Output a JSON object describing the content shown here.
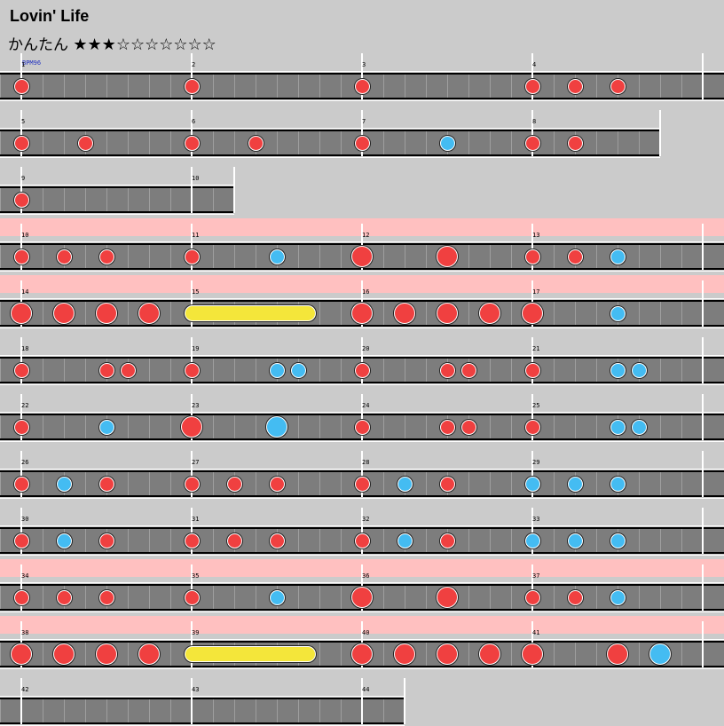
{
  "song": {
    "title": "Lovin' Life",
    "difficulty": "かんたん",
    "stars": "★★★☆☆☆☆☆☆☆",
    "bpm": "BPM96"
  },
  "rows": [
    {
      "m0": 1,
      "beats": 32,
      "gogo": false,
      "notes": [
        [
          0,
          "d",
          0
        ],
        [
          8,
          "d",
          0
        ],
        [
          16,
          "d",
          0
        ],
        [
          24,
          "d",
          0
        ],
        [
          26,
          "d",
          0
        ],
        [
          28,
          "d",
          0
        ]
      ]
    },
    {
      "m0": 5,
      "beats": 30,
      "gogo": false,
      "notes": [
        [
          0,
          "d",
          0
        ],
        [
          3,
          "d",
          0
        ],
        [
          8,
          "d",
          0
        ],
        [
          11,
          "d",
          0
        ],
        [
          16,
          "d",
          0
        ],
        [
          20,
          "k",
          0
        ],
        [
          24,
          "d",
          0
        ],
        [
          26,
          "d",
          0
        ]
      ]
    },
    {
      "m0": 9,
      "beats": 10,
      "gogo": false,
      "notes": [
        [
          0,
          "d",
          0
        ]
      ]
    },
    {
      "m0": 10,
      "beats": 32,
      "gogo": true,
      "notes": [
        [
          0,
          "d",
          0
        ],
        [
          2,
          "d",
          0
        ],
        [
          4,
          "d",
          0
        ],
        [
          8,
          "d",
          0
        ],
        [
          12,
          "k",
          0
        ],
        [
          16,
          "d",
          1
        ],
        [
          20,
          "d",
          1
        ],
        [
          24,
          "d",
          0
        ],
        [
          26,
          "d",
          0
        ],
        [
          28,
          "k",
          0
        ]
      ]
    },
    {
      "m0": 14,
      "beats": 32,
      "gogo": true,
      "notes": [
        [
          0,
          "d",
          1
        ],
        [
          2,
          "d",
          1
        ],
        [
          4,
          "d",
          1
        ],
        [
          6,
          "d",
          1
        ],
        [
          16,
          "d",
          1
        ],
        [
          18,
          "d",
          1
        ],
        [
          20,
          "d",
          1
        ],
        [
          22,
          "d",
          1
        ],
        [
          24,
          "d",
          1
        ],
        [
          28,
          "k",
          0
        ]
      ],
      "rolls": [
        [
          8,
          13.5
        ]
      ]
    },
    {
      "m0": 18,
      "beats": 32,
      "gogo": false,
      "notes": [
        [
          0,
          "d",
          0
        ],
        [
          4,
          "d",
          0
        ],
        [
          5,
          "d",
          0
        ],
        [
          8,
          "d",
          0
        ],
        [
          12,
          "k",
          0
        ],
        [
          13,
          "k",
          0
        ],
        [
          16,
          "d",
          0
        ],
        [
          20,
          "d",
          0
        ],
        [
          21,
          "d",
          0
        ],
        [
          24,
          "d",
          0
        ],
        [
          28,
          "k",
          0
        ],
        [
          29,
          "k",
          0
        ]
      ]
    },
    {
      "m0": 22,
      "beats": 32,
      "gogo": false,
      "notes": [
        [
          0,
          "d",
          0
        ],
        [
          4,
          "k",
          0
        ],
        [
          8,
          "d",
          1
        ],
        [
          12,
          "k",
          1
        ],
        [
          16,
          "d",
          0
        ],
        [
          20,
          "d",
          0
        ],
        [
          21,
          "d",
          0
        ],
        [
          24,
          "d",
          0
        ],
        [
          28,
          "k",
          0
        ],
        [
          29,
          "k",
          0
        ]
      ]
    },
    {
      "m0": 26,
      "beats": 32,
      "gogo": false,
      "notes": [
        [
          0,
          "d",
          0
        ],
        [
          2,
          "k",
          0
        ],
        [
          4,
          "d",
          0
        ],
        [
          8,
          "d",
          0
        ],
        [
          10,
          "d",
          0
        ],
        [
          12,
          "d",
          0
        ],
        [
          16,
          "d",
          0
        ],
        [
          18,
          "k",
          0
        ],
        [
          20,
          "d",
          0
        ],
        [
          24,
          "k",
          0
        ],
        [
          26,
          "k",
          0
        ],
        [
          28,
          "k",
          0
        ]
      ]
    },
    {
      "m0": 30,
      "beats": 32,
      "gogo": false,
      "notes": [
        [
          0,
          "d",
          0
        ],
        [
          2,
          "k",
          0
        ],
        [
          4,
          "d",
          0
        ],
        [
          8,
          "d",
          0
        ],
        [
          10,
          "d",
          0
        ],
        [
          12,
          "d",
          0
        ],
        [
          16,
          "d",
          0
        ],
        [
          18,
          "k",
          0
        ],
        [
          20,
          "d",
          0
        ],
        [
          24,
          "k",
          0
        ],
        [
          26,
          "k",
          0
        ],
        [
          28,
          "k",
          0
        ]
      ]
    },
    {
      "m0": 34,
      "beats": 32,
      "gogo": true,
      "notes": [
        [
          0,
          "d",
          0
        ],
        [
          2,
          "d",
          0
        ],
        [
          4,
          "d",
          0
        ],
        [
          8,
          "d",
          0
        ],
        [
          12,
          "k",
          0
        ],
        [
          16,
          "d",
          1
        ],
        [
          20,
          "d",
          1
        ],
        [
          24,
          "d",
          0
        ],
        [
          26,
          "d",
          0
        ],
        [
          28,
          "k",
          0
        ]
      ]
    },
    {
      "m0": 38,
      "beats": 32,
      "gogo": true,
      "notes": [
        [
          0,
          "d",
          1
        ],
        [
          2,
          "d",
          1
        ],
        [
          4,
          "d",
          1
        ],
        [
          6,
          "d",
          1
        ],
        [
          16,
          "d",
          1
        ],
        [
          18,
          "d",
          1
        ],
        [
          20,
          "d",
          1
        ],
        [
          22,
          "d",
          1
        ],
        [
          24,
          "d",
          1
        ],
        [
          28,
          "d",
          1
        ],
        [
          30,
          "k",
          1
        ]
      ],
      "rolls": [
        [
          8,
          13.5
        ]
      ]
    },
    {
      "m0": 42,
      "beats": 18,
      "gogo": false,
      "notes": []
    }
  ]
}
